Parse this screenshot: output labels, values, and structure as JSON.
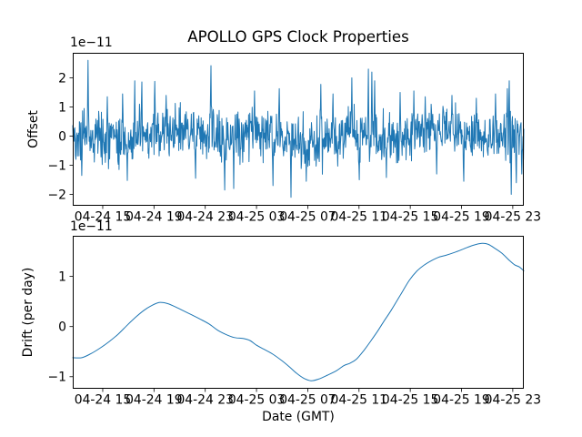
{
  "figure": {
    "background": "#ffffff",
    "text_color": "#000000",
    "accent_line_color": "#1f77b4"
  },
  "chart_data": [
    {
      "type": "line",
      "title": "APOLLO GPS Clock Properties",
      "ylabel": "Offset",
      "y_scale_label": "1e−11",
      "line_color": "#1f77b4",
      "grid": false,
      "legend": null,
      "ylim": [
        -2.39,
        2.86
      ],
      "yticks": [
        -2,
        -1,
        0,
        1,
        2
      ],
      "xlim_hours": [
        0,
        35.2
      ],
      "xticks_hours": [
        2.34,
        6.34,
        10.34,
        14.34,
        18.34,
        22.34,
        26.34,
        30.34,
        34.34
      ],
      "xtick_labels": [
        "04-24 15",
        "04-24 19",
        "04-24 23",
        "04-25 03",
        "04-25 07",
        "04-25 11",
        "04-25 15",
        "04-25 19",
        "04-25 23"
      ],
      "series_note": "High-rate GPS clock offset noise in units of 1e-11: dense zero-mean scatter (std ~0.42) with intermittent spikes; reproduced from the generator spec below.",
      "noise_series": {
        "n": 1150,
        "seed": 42,
        "amp": 0.85,
        "wander": [
          [
            0.13,
            0.9,
            1.0
          ],
          [
            0.1,
            0.35,
            4.0
          ]
        ],
        "spikes": [
          [
            0.71,
            -1.35
          ],
          [
            1.21,
            2.6
          ],
          [
            2.7,
            1.35
          ],
          [
            3.9,
            1.45
          ],
          [
            4.26,
            -1.52
          ],
          [
            4.83,
            1.9
          ],
          [
            5.39,
            1.86
          ],
          [
            6.39,
            1.88
          ],
          [
            7.3,
            1.4
          ],
          [
            9.58,
            -1.45
          ],
          [
            10.79,
            2.42
          ],
          [
            11.85,
            -1.85
          ],
          [
            12.56,
            -1.8
          ],
          [
            14.19,
            1.55
          ],
          [
            15.61,
            -1.7
          ],
          [
            16.11,
            1.63
          ],
          [
            17.03,
            -2.1
          ],
          [
            18.24,
            -1.55
          ],
          [
            19.37,
            1.78
          ],
          [
            20.3,
            1.45
          ],
          [
            21.79,
            2.0
          ],
          [
            22.36,
            -1.5
          ],
          [
            23.06,
            2.3
          ],
          [
            23.35,
            2.2
          ],
          [
            23.56,
            1.9
          ],
          [
            24.48,
            -1.42
          ],
          [
            25.55,
            1.5
          ],
          [
            26.61,
            1.55
          ],
          [
            27.5,
            1.35
          ],
          [
            28.39,
            -1.3
          ],
          [
            29.6,
            1.4
          ],
          [
            30.52,
            -1.55
          ],
          [
            31.5,
            1.3
          ],
          [
            33.0,
            1.45
          ],
          [
            33.92,
            1.63
          ],
          [
            34.06,
            1.9
          ],
          [
            34.21,
            -2.0
          ],
          [
            34.63,
            -1.6
          ],
          [
            35.05,
            -1.3
          ]
        ]
      }
    },
    {
      "type": "line",
      "title": "",
      "ylabel": "Drift (per day)",
      "xlabel": "Date (GMT)",
      "y_scale_label": "1e−11",
      "line_color": "#1f77b4",
      "grid": false,
      "legend": null,
      "smooth": true,
      "ylim": [
        -1.24,
        1.81
      ],
      "yticks": [
        -1,
        0,
        1
      ],
      "xlim_hours": [
        0,
        35.2
      ],
      "xticks_hours": [
        2.34,
        6.34,
        10.34,
        14.34,
        18.34,
        22.34,
        26.34,
        30.34,
        34.34
      ],
      "xtick_labels": [
        "04-24 15",
        "04-24 19",
        "04-24 23",
        "04-25 03",
        "04-25 07",
        "04-25 11",
        "04-25 15",
        "04-25 19",
        "04-25 23"
      ],
      "x_note": "x measured in hours; 0 h = left edge (~04-24 12:40 GMT), ticks every 4 h",
      "points": [
        [
          0.0,
          -0.62
        ],
        [
          0.71,
          -0.62
        ],
        [
          1.42,
          -0.54
        ],
        [
          2.13,
          -0.43
        ],
        [
          2.84,
          -0.3
        ],
        [
          3.55,
          -0.15
        ],
        [
          4.26,
          0.03
        ],
        [
          4.97,
          0.2
        ],
        [
          5.54,
          0.32
        ],
        [
          6.1,
          0.41
        ],
        [
          6.74,
          0.48
        ],
        [
          7.38,
          0.46
        ],
        [
          7.95,
          0.4
        ],
        [
          8.52,
          0.33
        ],
        [
          9.23,
          0.24
        ],
        [
          9.93,
          0.15
        ],
        [
          10.65,
          0.05
        ],
        [
          11.35,
          -0.08
        ],
        [
          12.06,
          -0.17
        ],
        [
          12.63,
          -0.22
        ],
        [
          13.34,
          -0.24
        ],
        [
          13.84,
          -0.28
        ],
        [
          14.33,
          -0.37
        ],
        [
          14.9,
          -0.45
        ],
        [
          15.61,
          -0.55
        ],
        [
          16.32,
          -0.68
        ],
        [
          16.89,
          -0.8
        ],
        [
          17.46,
          -0.93
        ],
        [
          18.02,
          -1.03
        ],
        [
          18.59,
          -1.08
        ],
        [
          19.16,
          -1.05
        ],
        [
          19.87,
          -0.97
        ],
        [
          20.58,
          -0.88
        ],
        [
          21.15,
          -0.78
        ],
        [
          21.64,
          -0.73
        ],
        [
          22.14,
          -0.65
        ],
        [
          22.71,
          -0.48
        ],
        [
          23.28,
          -0.28
        ],
        [
          23.77,
          -0.1
        ],
        [
          24.27,
          0.1
        ],
        [
          24.84,
          0.32
        ],
        [
          25.55,
          0.62
        ],
        [
          26.26,
          0.92
        ],
        [
          26.83,
          1.1
        ],
        [
          27.39,
          1.22
        ],
        [
          27.96,
          1.31
        ],
        [
          28.53,
          1.38
        ],
        [
          29.1,
          1.42
        ],
        [
          29.81,
          1.48
        ],
        [
          30.52,
          1.55
        ],
        [
          31.23,
          1.62
        ],
        [
          31.94,
          1.66
        ],
        [
          32.43,
          1.64
        ],
        [
          33.0,
          1.55
        ],
        [
          33.5,
          1.46
        ],
        [
          34.07,
          1.32
        ],
        [
          34.49,
          1.23
        ],
        [
          34.85,
          1.19
        ],
        [
          35.2,
          1.11
        ]
      ]
    }
  ]
}
